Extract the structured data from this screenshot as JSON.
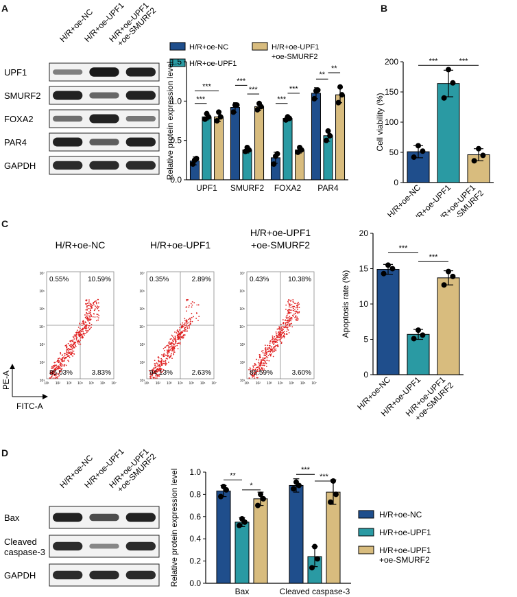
{
  "colors": {
    "nc": "#1f4e8c",
    "upf1": "#2a9aa3",
    "smurf2": "#d8bc7e",
    "blot_bg": "#f2f2f2",
    "band": "#111111",
    "dot": "#e02020",
    "quad": "#888888"
  },
  "groups": {
    "nc": "H/R+oe-NC",
    "upf1": "H/R+oe-UPF1",
    "upf1_line1": "H/R+oe-UPF1",
    "upf1_line2": "+oe-SMURF2"
  },
  "panelA": {
    "letter": "A",
    "blot_lanes": [
      "H/R+oe-NC",
      "H/R+oe-UPF1",
      "H/R+oe-UPF1",
      "+oe-SMURF2"
    ],
    "blot_rows": [
      {
        "label": "UPF1",
        "bands": [
          0.35,
          0.95,
          0.9
        ]
      },
      {
        "label": "SMURF2",
        "bands": [
          0.9,
          0.5,
          0.9
        ]
      },
      {
        "label": "FOXA2",
        "bands": [
          0.45,
          0.9,
          0.4
        ]
      },
      {
        "label": "PAR4",
        "bands": [
          0.9,
          0.55,
          0.9
        ]
      },
      {
        "label": "GAPDH",
        "bands": [
          0.85,
          0.85,
          0.85
        ]
      }
    ],
    "legend": [
      "H/R+oe-NC",
      "H/R+oe-UPF1",
      "H/R+oe-UPF1",
      "+oe-SMURF2"
    ],
    "sig": [
      "***",
      "***",
      "***",
      "***",
      "***",
      "***",
      "**",
      "**"
    ],
    "chart_data": {
      "type": "bar",
      "ylabel": "Relative protein expression level",
      "ylim": [
        0,
        1.5
      ],
      "yticks": [
        "0.0",
        "0.5",
        "1.0",
        "1.5"
      ],
      "categories": [
        "UPF1",
        "SMURF2",
        "FOXA2",
        "PAR4"
      ],
      "series": [
        {
          "name": "H/R+oe-NC",
          "values": [
            0.24,
            0.92,
            0.28,
            1.1
          ],
          "err": [
            0.05,
            0.06,
            0.07,
            0.07
          ],
          "points": [
            [
              0.2,
              0.27,
              0.25
            ],
            [
              0.86,
              0.95,
              0.95
            ],
            [
              0.2,
              0.33,
              0.3
            ],
            [
              1.03,
              1.14,
              1.13
            ]
          ]
        },
        {
          "name": "H/R+oe-UPF1",
          "values": [
            0.8,
            0.38,
            0.78,
            0.56
          ],
          "err": [
            0.04,
            0.04,
            0.03,
            0.07
          ],
          "points": [
            [
              0.77,
              0.8,
              0.84
            ],
            [
              0.36,
              0.38,
              0.41
            ],
            [
              0.76,
              0.78,
              0.8
            ],
            [
              0.5,
              0.56,
              0.62
            ]
          ]
        },
        {
          "name": "H/R+oe-UPF1 +oe-SMURF2",
          "values": [
            0.8,
            0.93,
            0.38,
            1.08
          ],
          "err": [
            0.06,
            0.05,
            0.04,
            0.1
          ],
          "points": [
            [
              0.75,
              0.8,
              0.86
            ],
            [
              0.89,
              0.93,
              0.97
            ],
            [
              0.35,
              0.38,
              0.41
            ],
            [
              0.98,
              1.08,
              1.18
            ]
          ]
        }
      ]
    }
  },
  "panelB": {
    "letter": "B",
    "sig": [
      "***",
      "***"
    ],
    "chart_data": {
      "type": "bar",
      "ylabel": "Cell viability (%)",
      "ylim": [
        0,
        200
      ],
      "yticks": [
        "0",
        "50",
        "100",
        "150",
        "200"
      ],
      "categories": [
        "H/R+oe-NC",
        "H/R+oe-UPF1",
        "H/R+oe-UPF1 +oe-SMURF2"
      ],
      "values": [
        51,
        164,
        46
      ],
      "err": [
        10,
        22,
        10
      ],
      "points": [
        [
          42,
          52,
          61
        ],
        [
          140,
          165,
          187
        ],
        [
          36,
          45,
          56
        ]
      ]
    }
  },
  "panelC": {
    "letter": "C",
    "flow_titles": [
      "H/R+oe-NC",
      "H/R+oe-UPF1",
      "H/R+oe-UPF1",
      "+oe-SMURF2"
    ],
    "plots": [
      {
        "ul": "0.55%",
        "ur": "10.59%",
        "ll": "85.03%",
        "lr": "3.83%"
      },
      {
        "ul": "0.35%",
        "ur": "2.89%",
        "ll": "94.13%",
        "lr": "2.63%"
      },
      {
        "ul": "0.43%",
        "ur": "10.38%",
        "ll": "85.59%",
        "lr": "3.60%"
      }
    ],
    "y_axis": "PE-A",
    "x_axis": "FITC-A",
    "ticks_y": [
      "10⁷",
      "10⁶",
      "10⁵",
      "10⁴",
      "10³",
      "10²",
      "10¹"
    ],
    "ticks_x": [
      "10¹",
      "10²",
      "10³",
      "10⁴",
      "10⁵",
      "10⁶",
      "10⁷"
    ],
    "sig": [
      "***",
      "***"
    ],
    "chart_data": {
      "type": "bar",
      "ylabel": "Apoptosis rate (%)",
      "ylim": [
        0,
        20
      ],
      "yticks": [
        "0",
        "5",
        "10",
        "15",
        "20"
      ],
      "categories": [
        "H/R+oe-NC",
        "H/R+oe-UPF1",
        "H/R+oe-UPF1 +oe-SMURF2"
      ],
      "values": [
        14.9,
        5.7,
        13.7
      ],
      "err": [
        0.7,
        0.7,
        1.0
      ],
      "points": [
        [
          14.3,
          15.0,
          15.5
        ],
        [
          5.1,
          5.6,
          6.3
        ],
        [
          12.7,
          13.9,
          14.6
        ]
      ]
    }
  },
  "panelD": {
    "letter": "D",
    "blot_lanes": [
      "H/R+oe-NC",
      "H/R+oe-UPF1",
      "H/R+oe-UPF1",
      "+oe-SMURF2"
    ],
    "blot_rows": [
      {
        "label": "Bax",
        "label2": "",
        "bands": [
          0.9,
          0.65,
          0.9
        ]
      },
      {
        "label": "Cleaved",
        "label2": "caspase-3",
        "bands": [
          0.85,
          0.3,
          0.85
        ]
      },
      {
        "label": "GAPDH",
        "label2": "",
        "bands": [
          0.85,
          0.85,
          0.85
        ]
      }
    ],
    "legend": [
      "H/R+oe-NC",
      "H/R+oe-UPF1",
      "H/R+oe-UPF1",
      "+oe-SMURF2"
    ],
    "sig": [
      "**",
      "*",
      "***",
      "***"
    ],
    "chart_data": {
      "type": "bar",
      "ylabel": "Relative protein expression level",
      "ylim": [
        0,
        1.0
      ],
      "yticks": [
        "0.0",
        "0.2",
        "0.4",
        "0.6",
        "0.8",
        "1.0"
      ],
      "categories": [
        "Bax",
        "Cleaved caspase-3"
      ],
      "series": [
        {
          "name": "H/R+oe-NC",
          "values": [
            0.83,
            0.88
          ],
          "err": [
            0.05,
            0.06
          ],
          "points": [
            [
              0.78,
              0.84,
              0.87
            ],
            [
              0.85,
              0.88,
              0.91
            ]
          ]
        },
        {
          "name": "H/R+oe-UPF1",
          "values": [
            0.55,
            0.24
          ],
          "err": [
            0.04,
            0.09
          ],
          "points": [
            [
              0.52,
              0.55,
              0.58
            ],
            [
              0.14,
              0.22,
              0.33
            ]
          ]
        },
        {
          "name": "H/R+oe-UPF1 +oe-SMURF2",
          "values": [
            0.76,
            0.82
          ],
          "err": [
            0.06,
            0.11
          ],
          "points": [
            [
              0.7,
              0.76,
              0.8
            ],
            [
              0.73,
              0.8,
              0.92
            ]
          ]
        }
      ]
    }
  }
}
